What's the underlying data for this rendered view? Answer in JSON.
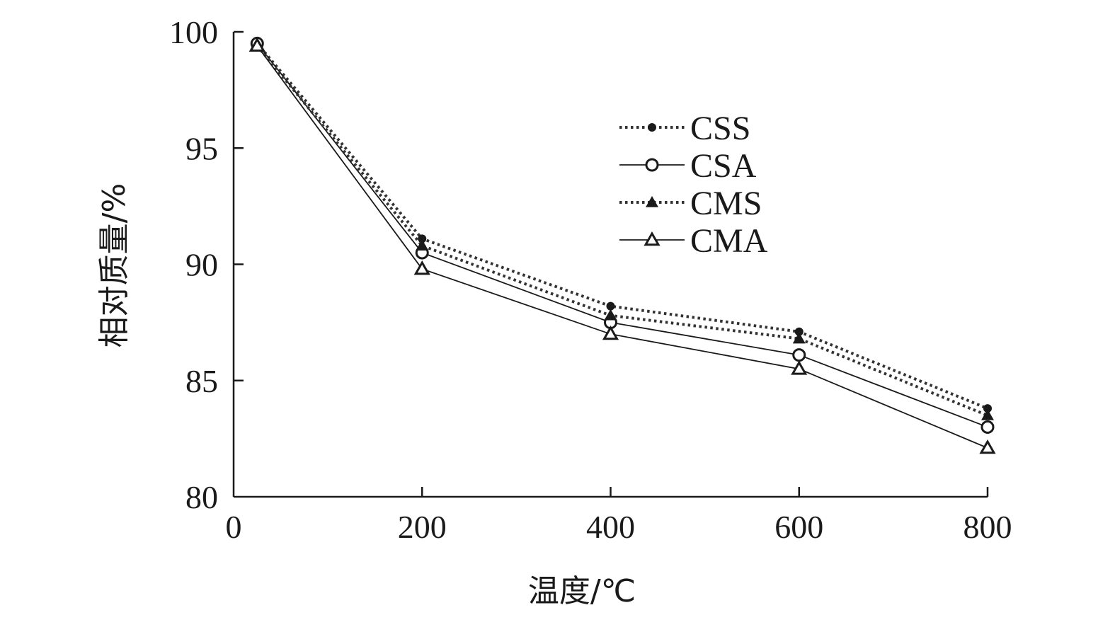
{
  "chart_data": {
    "type": "line",
    "xlabel": "温度/℃",
    "ylabel": "相对质量/%",
    "xlim": [
      0,
      800
    ],
    "ylim": [
      80,
      100
    ],
    "xticks": [
      "0",
      "200",
      "400",
      "600",
      "800"
    ],
    "yticks": [
      "80",
      "85",
      "90",
      "95",
      "100"
    ],
    "grid": false,
    "legend_position": "top-right",
    "series": [
      {
        "name": "CSS",
        "line": "dotted",
        "marker": "filled-circle",
        "x": [
          25,
          200,
          400,
          600,
          800
        ],
        "y": [
          99.5,
          91.1,
          88.2,
          87.1,
          83.8
        ]
      },
      {
        "name": "CSA",
        "line": "solid",
        "marker": "open-circle",
        "x": [
          25,
          200,
          400,
          600,
          800
        ],
        "y": [
          99.5,
          90.5,
          87.5,
          86.1,
          83.0
        ]
      },
      {
        "name": "CMS",
        "line": "dotted",
        "marker": "filled-triangle",
        "x": [
          25,
          200,
          400,
          600,
          800
        ],
        "y": [
          99.4,
          90.8,
          87.8,
          86.8,
          83.5
        ]
      },
      {
        "name": "CMA",
        "line": "solid",
        "marker": "open-triangle",
        "x": [
          25,
          200,
          400,
          600,
          800
        ],
        "y": [
          99.4,
          89.8,
          87.0,
          85.5,
          82.1
        ]
      }
    ]
  }
}
